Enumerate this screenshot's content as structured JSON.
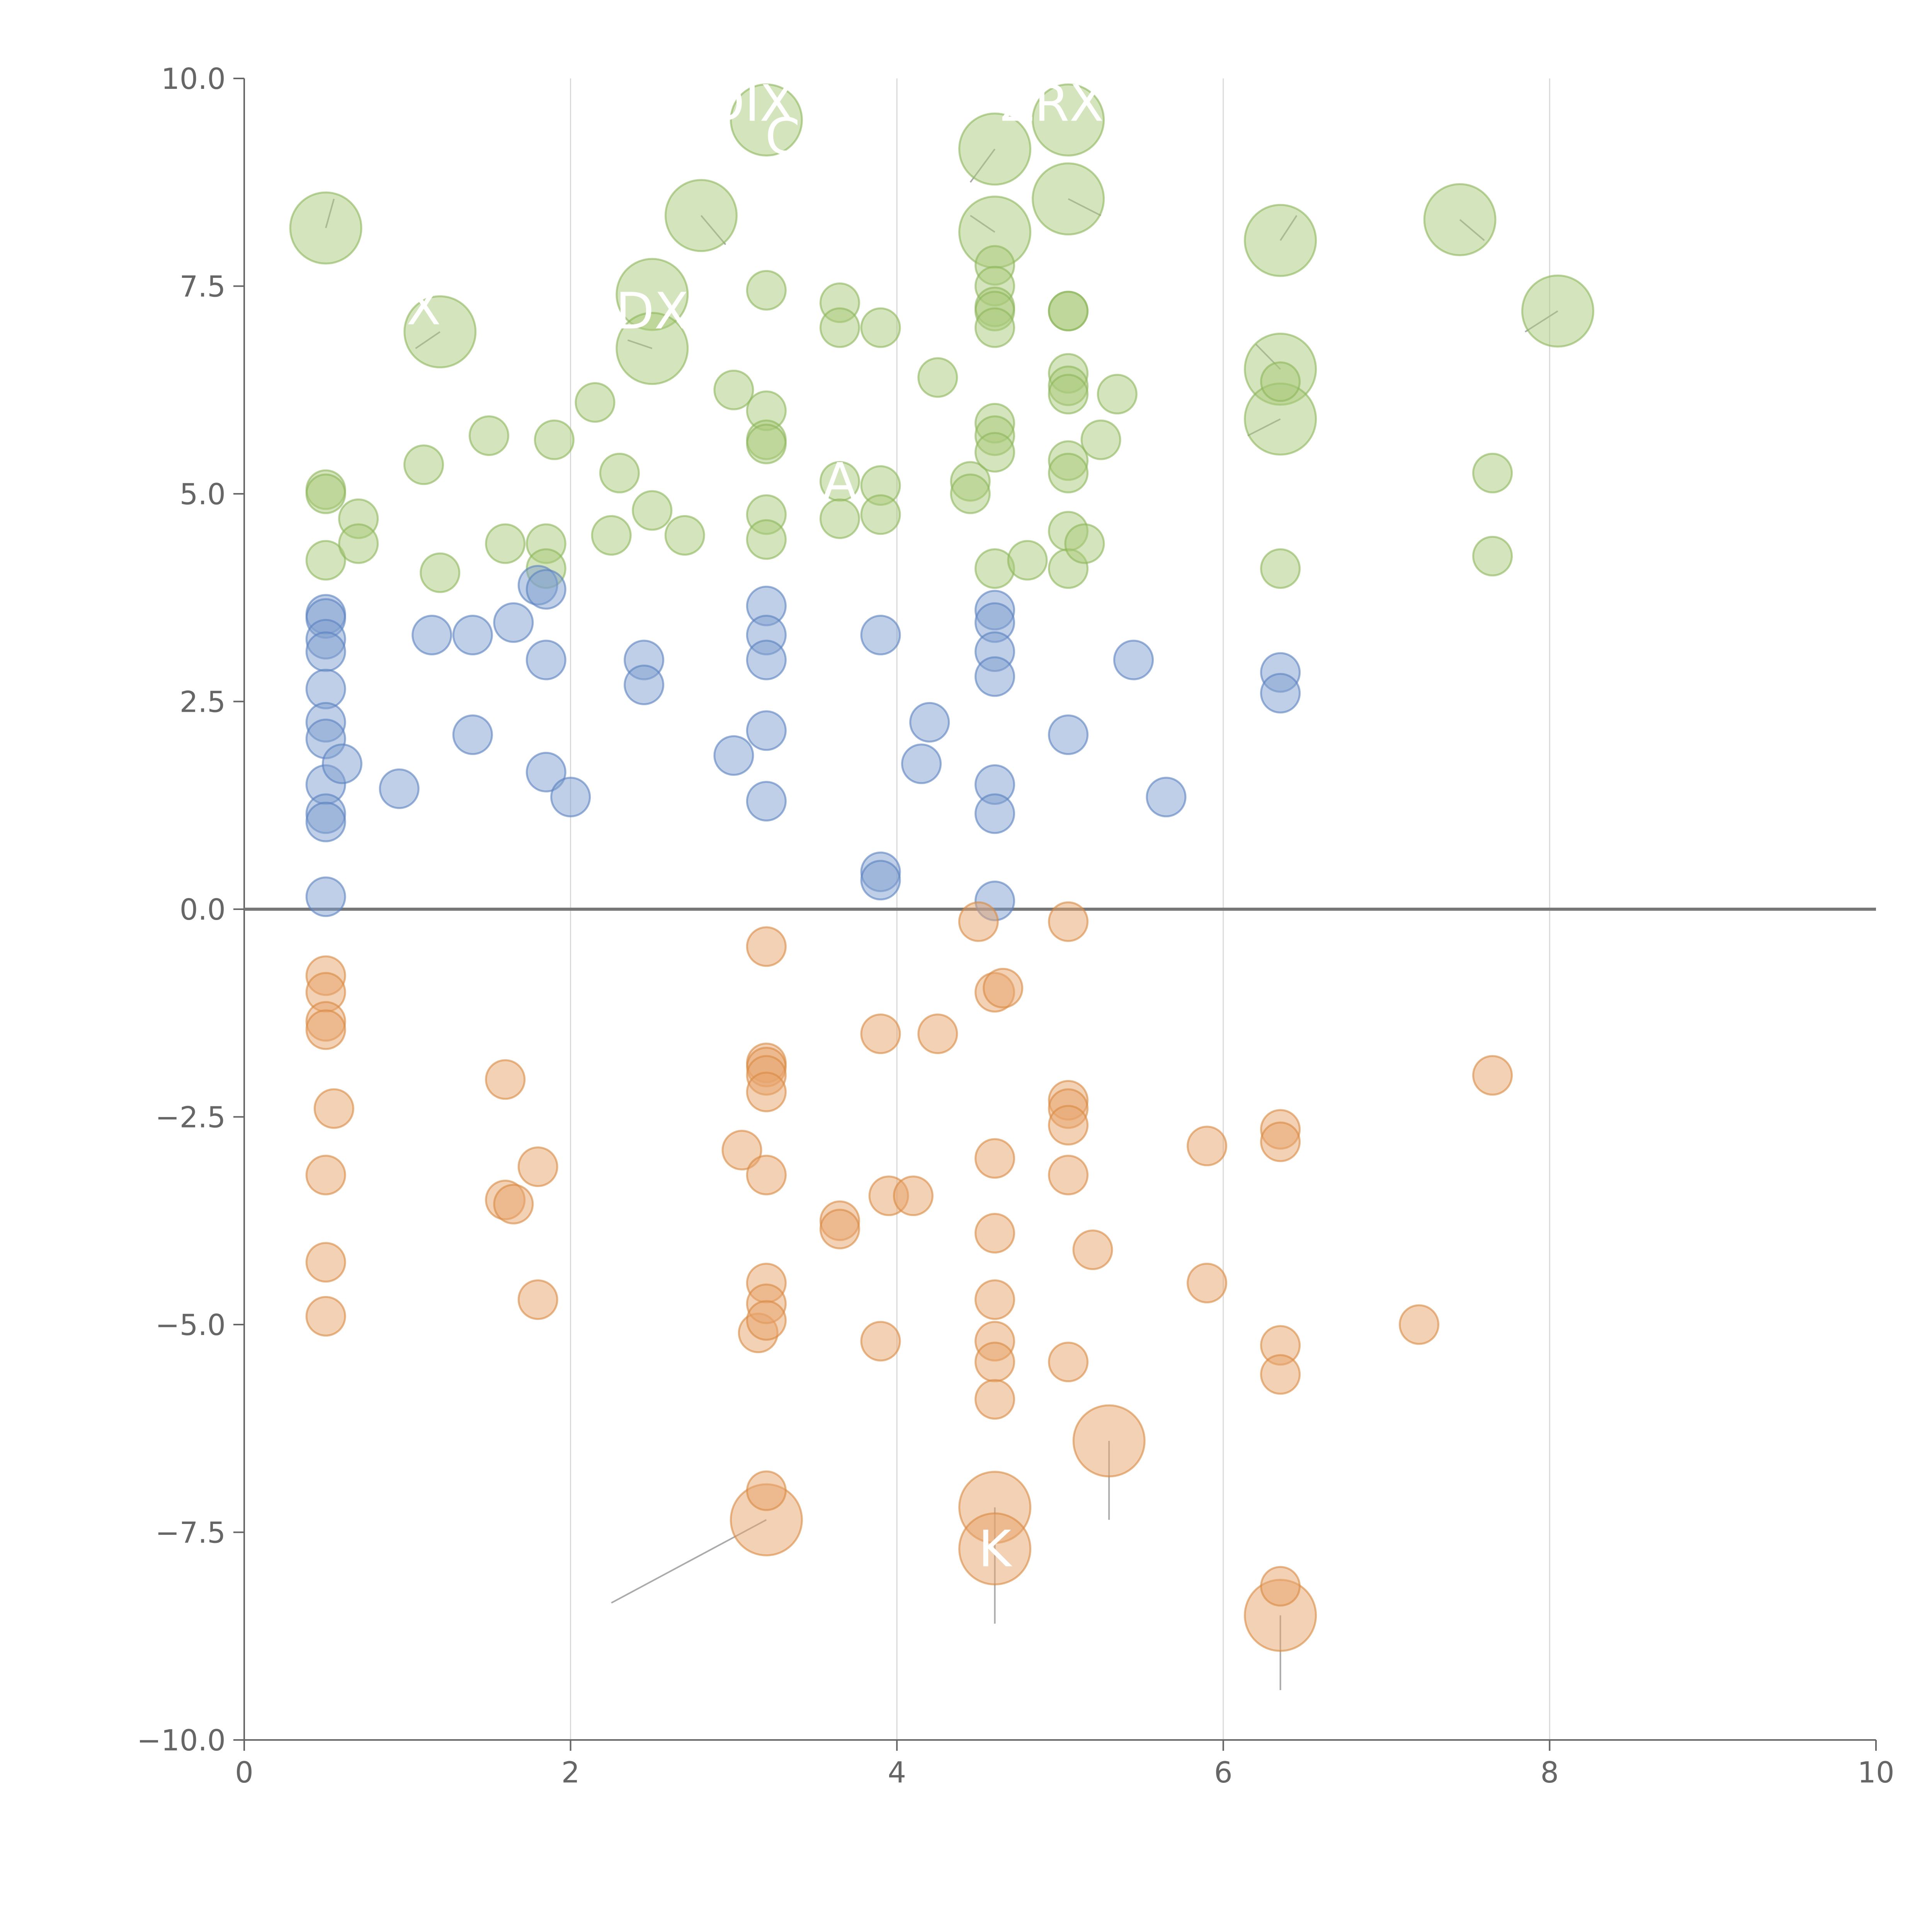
{
  "chart_data": {
    "type": "scatter",
    "title": "",
    "xlabel": "",
    "ylabel": "",
    "xlim": [
      0,
      10
    ],
    "ylim": [
      -10,
      10
    ],
    "x_ticks": [
      "0",
      "2",
      "4",
      "6",
      "8",
      "10"
    ],
    "y_ticks": [
      "10.0",
      "7.5",
      "5.0",
      "2.5",
      "0.0",
      "−2.5",
      "−5.0",
      "−7.5",
      "−10.0"
    ],
    "x_tick_values": [
      0,
      2,
      4,
      6,
      8,
      10
    ],
    "y_tick_values": [
      10,
      7.5,
      5,
      2.5,
      0,
      -2.5,
      -5,
      -7.5,
      -10
    ],
    "grid": "vertical",
    "zero_line": 0,
    "colors": {
      "green_fill": "#a9c97a",
      "green_stroke": "#8cb55a",
      "blue_fill": "#7f9fd0",
      "blue_stroke": "#5a80c0",
      "orange_fill": "#e8a46c",
      "orange_stroke": "#d98841"
    },
    "series": [
      {
        "color": "green",
        "points": [
          [
            0.5,
            8.2,
            2
          ],
          [
            1.2,
            6.95,
            2
          ],
          [
            2.5,
            7.4,
            2
          ],
          [
            2.5,
            6.75,
            2
          ],
          [
            2.8,
            8.35,
            2
          ],
          [
            3.2,
            9.5,
            2
          ],
          [
            4.6,
            9.15,
            2
          ],
          [
            4.6,
            8.15,
            2
          ],
          [
            5.05,
            9.5,
            2
          ],
          [
            5.05,
            8.55,
            2
          ],
          [
            6.35,
            8.05,
            2
          ],
          [
            6.35,
            6.5,
            2
          ],
          [
            6.35,
            5.9,
            2
          ],
          [
            7.45,
            8.3,
            2
          ],
          [
            8.05,
            7.2,
            2
          ],
          [
            0.5,
            5.05,
            1
          ],
          [
            0.5,
            5.0,
            1
          ],
          [
            0.5,
            4.2,
            1
          ],
          [
            0.7,
            4.7,
            1
          ],
          [
            0.7,
            4.4,
            1
          ],
          [
            1.1,
            5.35,
            1
          ],
          [
            1.2,
            4.05,
            1
          ],
          [
            1.5,
            5.7,
            1
          ],
          [
            1.6,
            4.4,
            1
          ],
          [
            1.85,
            4.4,
            1
          ],
          [
            1.85,
            4.1,
            1
          ],
          [
            1.9,
            5.65,
            1
          ],
          [
            2.15,
            6.1,
            1
          ],
          [
            2.25,
            4.5,
            1
          ],
          [
            2.3,
            5.25,
            1
          ],
          [
            2.5,
            4.8,
            1
          ],
          [
            2.7,
            4.5,
            1
          ],
          [
            3.0,
            6.25,
            1
          ],
          [
            3.2,
            7.45,
            1
          ],
          [
            3.2,
            6.0,
            1
          ],
          [
            3.2,
            5.65,
            1
          ],
          [
            3.2,
            5.6,
            1
          ],
          [
            3.2,
            4.75,
            1
          ],
          [
            3.2,
            4.45,
            1
          ],
          [
            3.65,
            7.3,
            1
          ],
          [
            3.65,
            7.0,
            1
          ],
          [
            3.65,
            5.15,
            1
          ],
          [
            3.65,
            4.7,
            1
          ],
          [
            3.9,
            7.0,
            1
          ],
          [
            3.9,
            5.1,
            1
          ],
          [
            3.9,
            4.75,
            1
          ],
          [
            4.25,
            6.4,
            1
          ],
          [
            4.45,
            5.15,
            1
          ],
          [
            4.45,
            5.0,
            1
          ],
          [
            4.6,
            7.75,
            1
          ],
          [
            4.6,
            7.5,
            1
          ],
          [
            4.6,
            7.25,
            1
          ],
          [
            4.6,
            7.2,
            1
          ],
          [
            4.6,
            7.0,
            1
          ],
          [
            4.6,
            5.85,
            1
          ],
          [
            4.6,
            5.7,
            1
          ],
          [
            4.6,
            5.5,
            1
          ],
          [
            4.6,
            4.1,
            1
          ],
          [
            4.8,
            4.2,
            1
          ],
          [
            5.05,
            7.2,
            1
          ],
          [
            5.05,
            7.2,
            1
          ],
          [
            5.05,
            6.45,
            1
          ],
          [
            5.05,
            6.3,
            1
          ],
          [
            5.05,
            6.2,
            1
          ],
          [
            5.05,
            5.4,
            1
          ],
          [
            5.05,
            5.25,
            1
          ],
          [
            5.05,
            4.55,
            1
          ],
          [
            5.05,
            4.1,
            1
          ],
          [
            5.15,
            4.4,
            1
          ],
          [
            5.25,
            5.65,
            1
          ],
          [
            5.35,
            6.2,
            1
          ],
          [
            6.35,
            6.35,
            1
          ],
          [
            6.35,
            4.1,
            1
          ],
          [
            7.65,
            5.25,
            1
          ],
          [
            7.65,
            4.25,
            1
          ]
        ]
      },
      {
        "color": "blue",
        "points": [
          [
            0.5,
            3.55,
            1
          ],
          [
            0.5,
            3.5,
            1
          ],
          [
            0.5,
            3.25,
            1
          ],
          [
            0.5,
            3.1,
            1
          ],
          [
            0.5,
            2.65,
            1
          ],
          [
            0.5,
            2.25,
            1
          ],
          [
            0.5,
            2.05,
            1
          ],
          [
            0.5,
            1.5,
            1
          ],
          [
            0.5,
            1.15,
            1
          ],
          [
            0.5,
            1.05,
            1
          ],
          [
            0.5,
            0.15,
            1
          ],
          [
            0.6,
            1.75,
            1
          ],
          [
            0.95,
            1.45,
            1
          ],
          [
            1.15,
            3.3,
            1
          ],
          [
            1.4,
            3.3,
            1
          ],
          [
            1.4,
            2.1,
            1
          ],
          [
            1.65,
            3.45,
            1
          ],
          [
            1.8,
            3.9,
            1
          ],
          [
            1.85,
            3.85,
            1
          ],
          [
            1.85,
            3.0,
            1
          ],
          [
            1.85,
            1.65,
            1
          ],
          [
            2.0,
            1.35,
            1
          ],
          [
            2.45,
            3.0,
            1
          ],
          [
            2.45,
            2.7,
            1
          ],
          [
            3.0,
            1.85,
            1
          ],
          [
            3.2,
            3.65,
            1
          ],
          [
            3.2,
            3.3,
            1
          ],
          [
            3.2,
            3.0,
            1
          ],
          [
            3.2,
            2.15,
            1
          ],
          [
            3.2,
            1.3,
            1
          ],
          [
            3.9,
            3.3,
            1
          ],
          [
            3.9,
            0.45,
            1
          ],
          [
            3.9,
            0.35,
            1
          ],
          [
            4.15,
            1.75,
            1
          ],
          [
            4.2,
            2.25,
            1
          ],
          [
            4.6,
            3.6,
            1
          ],
          [
            4.6,
            3.45,
            1
          ],
          [
            4.6,
            3.1,
            1
          ],
          [
            4.6,
            2.8,
            1
          ],
          [
            4.6,
            1.5,
            1
          ],
          [
            4.6,
            1.15,
            1
          ],
          [
            4.6,
            0.1,
            1
          ],
          [
            5.05,
            2.1,
            1
          ],
          [
            5.45,
            3.0,
            1
          ],
          [
            5.65,
            1.35,
            1
          ],
          [
            6.35,
            2.85,
            1
          ],
          [
            6.35,
            2.6,
            1
          ]
        ]
      },
      {
        "color": "orange",
        "points": [
          [
            3.2,
            -7.35,
            2
          ],
          [
            4.6,
            -7.2,
            2
          ],
          [
            4.6,
            -7.7,
            2
          ],
          [
            5.3,
            -6.4,
            2
          ],
          [
            6.35,
            -8.5,
            2
          ],
          [
            0.5,
            -0.8,
            1
          ],
          [
            0.5,
            -1.0,
            1
          ],
          [
            0.5,
            -1.35,
            1
          ],
          [
            0.5,
            -1.45,
            1
          ],
          [
            0.55,
            -2.4,
            1
          ],
          [
            0.5,
            -3.2,
            1
          ],
          [
            0.5,
            -4.25,
            1
          ],
          [
            0.5,
            -4.9,
            1
          ],
          [
            1.6,
            -2.05,
            1
          ],
          [
            1.6,
            -3.5,
            1
          ],
          [
            1.65,
            -3.55,
            1
          ],
          [
            1.8,
            -3.1,
            1
          ],
          [
            1.8,
            -4.7,
            1
          ],
          [
            3.05,
            -2.9,
            1
          ],
          [
            3.15,
            -5.1,
            1
          ],
          [
            3.2,
            -0.45,
            1
          ],
          [
            3.2,
            -1.85,
            1
          ],
          [
            3.2,
            -1.9,
            1
          ],
          [
            3.2,
            -2.0,
            1
          ],
          [
            3.2,
            -2.2,
            1
          ],
          [
            3.2,
            -3.2,
            1
          ],
          [
            3.2,
            -4.5,
            1
          ],
          [
            3.2,
            -4.75,
            1
          ],
          [
            3.2,
            -4.95,
            1
          ],
          [
            3.2,
            -7.0,
            1
          ],
          [
            3.65,
            -3.75,
            1
          ],
          [
            3.65,
            -3.85,
            1
          ],
          [
            3.9,
            -1.5,
            1
          ],
          [
            3.9,
            -5.2,
            1
          ],
          [
            3.95,
            -3.45,
            1
          ],
          [
            4.1,
            -3.45,
            1
          ],
          [
            4.25,
            -1.5,
            1
          ],
          [
            4.5,
            -0.15,
            1
          ],
          [
            4.6,
            -1.0,
            1
          ],
          [
            4.65,
            -0.95,
            1
          ],
          [
            4.6,
            -3.0,
            1
          ],
          [
            4.6,
            -3.9,
            1
          ],
          [
            4.6,
            -4.7,
            1
          ],
          [
            4.6,
            -5.2,
            1
          ],
          [
            4.6,
            -5.45,
            1
          ],
          [
            4.6,
            -5.9,
            1
          ],
          [
            5.05,
            -0.15,
            1
          ],
          [
            5.05,
            -2.3,
            1
          ],
          [
            5.05,
            -2.4,
            1
          ],
          [
            5.05,
            -2.6,
            1
          ],
          [
            5.05,
            -3.2,
            1
          ],
          [
            5.05,
            -5.45,
            1
          ],
          [
            5.2,
            -4.1,
            1
          ],
          [
            5.9,
            -2.85,
            1
          ],
          [
            5.9,
            -4.5,
            1
          ],
          [
            6.35,
            -2.65,
            1
          ],
          [
            6.35,
            -2.8,
            1
          ],
          [
            6.35,
            -5.25,
            1
          ],
          [
            6.35,
            -5.6,
            1
          ],
          [
            6.35,
            -8.15,
            1
          ],
          [
            7.2,
            -5.0,
            1
          ],
          [
            7.65,
            -2.0,
            1
          ]
        ]
      }
    ],
    "annotations": [
      {
        "text": "K",
        "x": 4.6,
        "y": -7.7
      },
      {
        "text": "A",
        "x": 3.65,
        "y": 5.15
      },
      {
        "text": "DX",
        "x": 2.5,
        "y": 7.2
      },
      {
        "text": "X",
        "x": 1.1,
        "y": 7.25
      },
      {
        "text": "ZRX",
        "x": 4.95,
        "y": 9.7
      },
      {
        "text": "DIX",
        "x": 3.1,
        "y": 9.7
      },
      {
        "text": "C",
        "x": 3.3,
        "y": 9.3
      }
    ],
    "leader_lines": [
      {
        "x1": 3.2,
        "y1": -7.35,
        "x2": 2.25,
        "y2": -8.35
      },
      {
        "x1": 4.6,
        "y1": -7.2,
        "x2": 4.6,
        "y2": -8.6
      },
      {
        "x1": 5.3,
        "y1": -6.4,
        "x2": 5.3,
        "y2": -7.35
      },
      {
        "x1": 6.35,
        "y1": -8.5,
        "x2": 6.35,
        "y2": -9.4
      },
      {
        "x1": 0.5,
        "y1": 8.2,
        "x2": 0.55,
        "y2": 8.55
      },
      {
        "x1": 1.2,
        "y1": 6.95,
        "x2": 1.05,
        "y2": 6.75
      },
      {
        "x1": 2.5,
        "y1": 6.75,
        "x2": 2.35,
        "y2": 6.85
      },
      {
        "x1": 2.8,
        "y1": 8.35,
        "x2": 2.95,
        "y2": 8.0
      },
      {
        "x1": 4.6,
        "y1": 9.15,
        "x2": 4.45,
        "y2": 8.75
      },
      {
        "x1": 4.6,
        "y1": 8.15,
        "x2": 4.45,
        "y2": 8.35
      },
      {
        "x1": 5.05,
        "y1": 8.55,
        "x2": 5.25,
        "y2": 8.35
      },
      {
        "x1": 6.35,
        "y1": 8.05,
        "x2": 6.45,
        "y2": 8.35
      },
      {
        "x1": 6.35,
        "y1": 6.5,
        "x2": 6.2,
        "y2": 6.8
      },
      {
        "x1": 6.35,
        "y1": 5.9,
        "x2": 6.15,
        "y2": 5.7
      },
      {
        "x1": 7.45,
        "y1": 8.3,
        "x2": 7.6,
        "y2": 8.05
      },
      {
        "x1": 8.05,
        "y1": 7.2,
        "x2": 7.85,
        "y2": 6.95
      }
    ]
  }
}
